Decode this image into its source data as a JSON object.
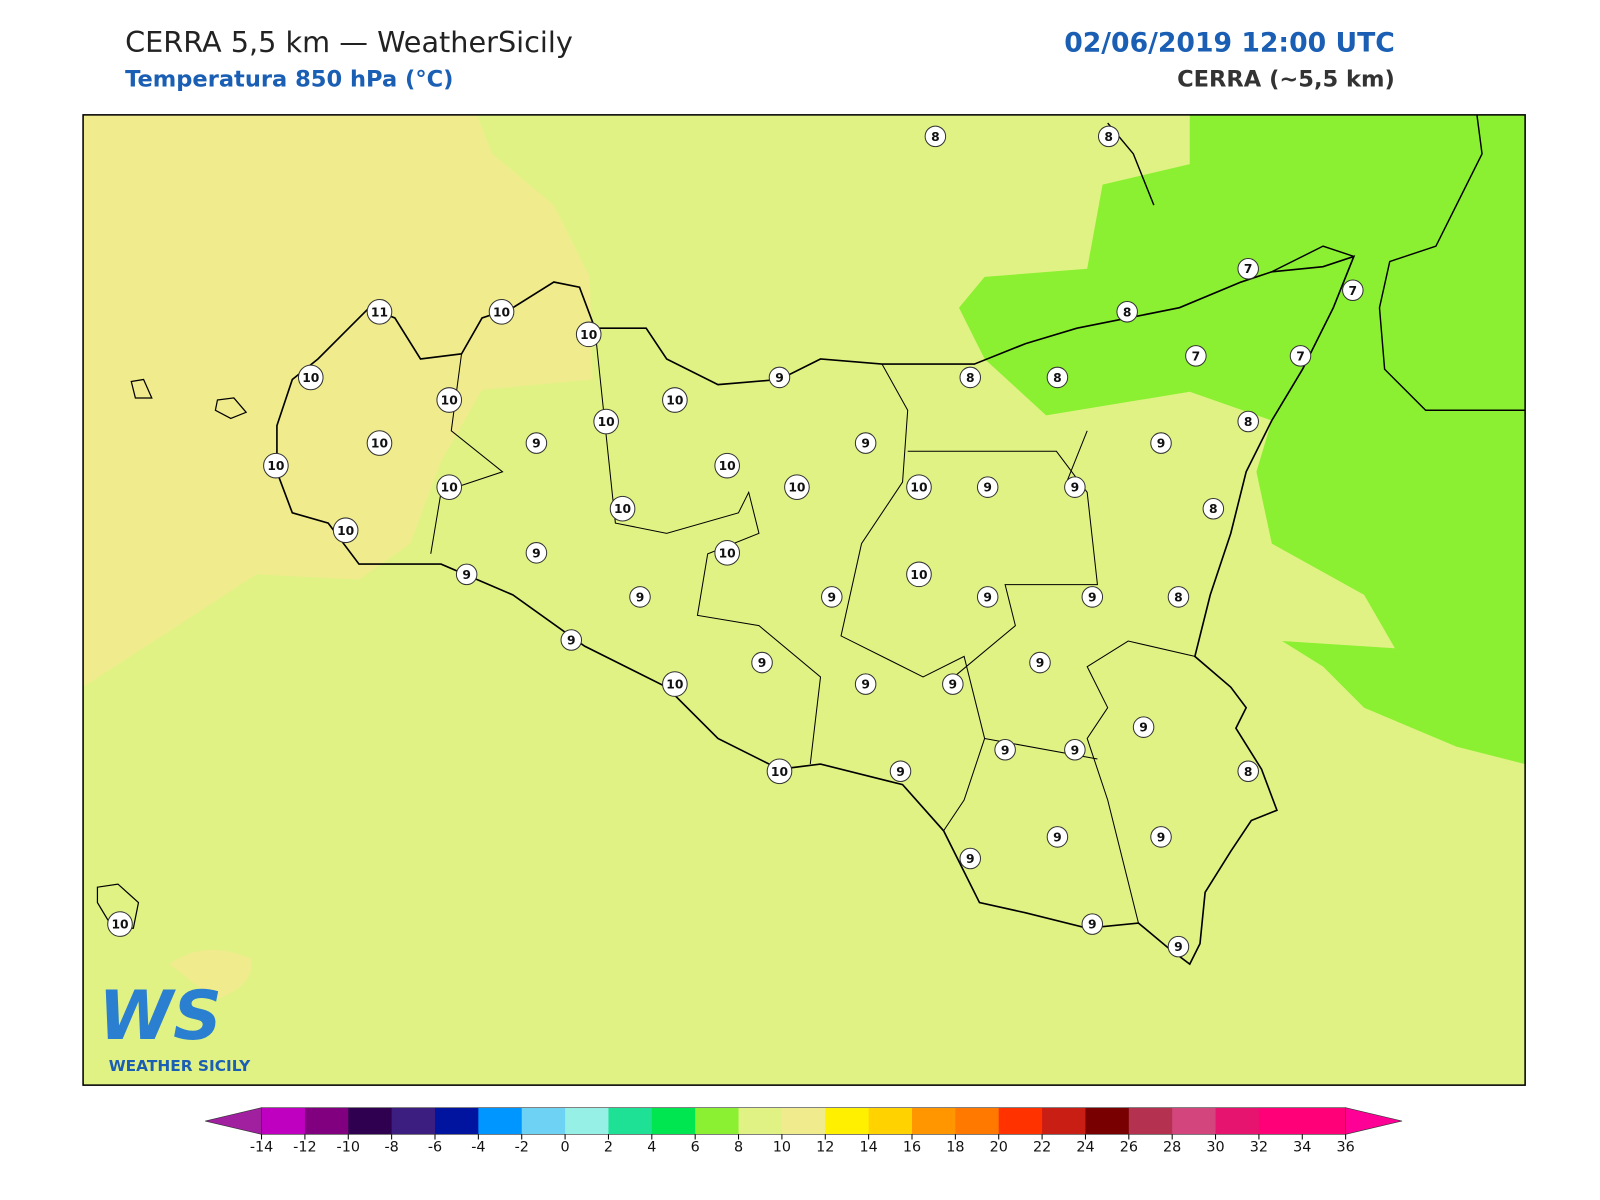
{
  "header": {
    "title": "CERRA 5,5 km — WeatherSicily",
    "subtitle": "Temperatura 850 hPa (°C)",
    "datetime": "02/06/2019 12:00 UTC",
    "model": "CERRA (~5,5 km)"
  },
  "logo": {
    "mark": "WS",
    "text": "WEATHER SICILY"
  },
  "stations": [
    8,
    8,
    7,
    7,
    8,
    7,
    7,
    8,
    8,
    8,
    9,
    11,
    10,
    10,
    10,
    10,
    10,
    10,
    9,
    10,
    9,
    9,
    10,
    10,
    10,
    10,
    9,
    9,
    10,
    8,
    10,
    10,
    9,
    10,
    9,
    10,
    9,
    9,
    9,
    9,
    8,
    9,
    9,
    9,
    10,
    9,
    9,
    9,
    9,
    9,
    10,
    9,
    8,
    9,
    9,
    9,
    9,
    9,
    10
  ],
  "colorbar": {
    "ticks": [
      -14,
      -12,
      -10,
      -8,
      -6,
      -4,
      -2,
      0,
      2,
      4,
      6,
      8,
      10,
      12,
      14,
      16,
      18,
      20,
      22,
      24,
      26,
      28,
      30,
      32,
      34,
      36
    ],
    "colors": [
      "#c000c0",
      "#800080",
      "#300050",
      "#3c1e80",
      "#0014a0",
      "#0096ff",
      "#6ed2f5",
      "#96f0e6",
      "#1ee196",
      "#00e650",
      "#8cf032",
      "#e1f285",
      "#f0eb8c",
      "#fff000",
      "#ffd200",
      "#ff9600",
      "#ff7800",
      "#ff3200",
      "#c81e14",
      "#780000",
      "#b43250",
      "#d2467d",
      "#e6146e",
      "#ff0078",
      "#ff0078"
    ],
    "under_color": "#a020a0",
    "over_color": "#ff0096"
  }
}
